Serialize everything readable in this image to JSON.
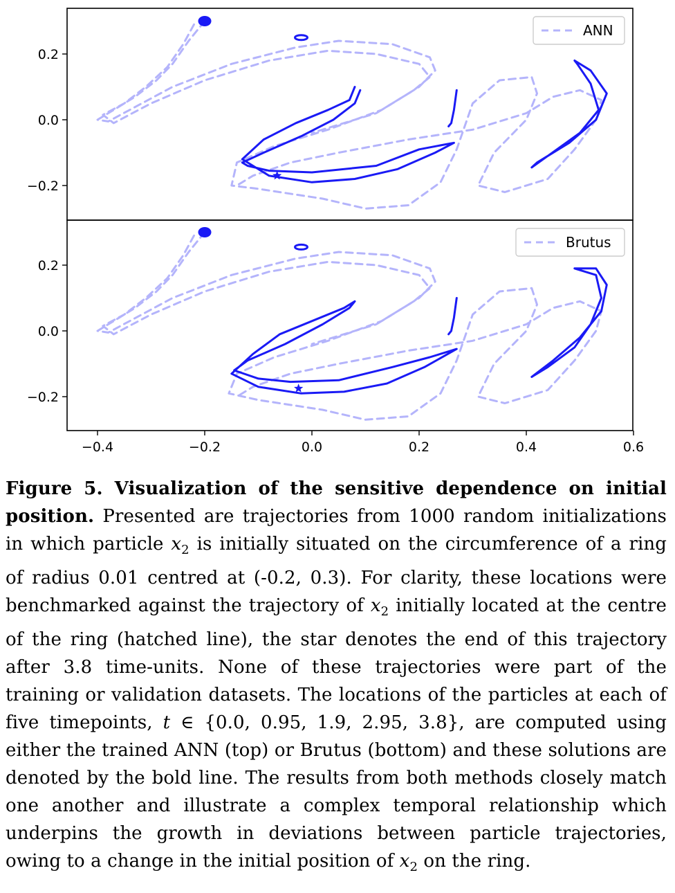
{
  "chart_data": [
    {
      "type": "line",
      "panel": "top",
      "legend": {
        "label": "ANN",
        "placement": "top-right",
        "style": "dashed",
        "color": "#b4b4fb"
      },
      "xlim": [
        -0.45,
        0.6
      ],
      "ylim": [
        -0.3,
        0.33
      ],
      "yticks": [
        -0.2,
        0.0,
        0.2
      ],
      "ytick_labels": [
        "−0.2",
        "0.0",
        "0.2"
      ],
      "series": [
        {
          "style": "dashed",
          "color": "#b4b4fb",
          "points": [
            [
              -0.2,
              0.3
            ],
            [
              -0.23,
              0.24
            ],
            [
              -0.26,
              0.17
            ],
            [
              -0.29,
              0.12
            ],
            [
              -0.33,
              0.07
            ],
            [
              -0.37,
              0.03
            ],
            [
              -0.4,
              0.0
            ],
            [
              -0.38,
              -0.005
            ],
            [
              -0.34,
              0.03
            ],
            [
              -0.26,
              0.1
            ],
            [
              -0.15,
              0.17
            ],
            [
              -0.03,
              0.22
            ],
            [
              0.05,
              0.24
            ],
            [
              0.15,
              0.23
            ],
            [
              0.22,
              0.19
            ],
            [
              0.23,
              0.15
            ],
            [
              0.2,
              0.1
            ],
            [
              0.13,
              0.03
            ],
            [
              0.03,
              -0.03
            ],
            [
              -0.07,
              -0.08
            ],
            [
              -0.14,
              -0.13
            ],
            [
              -0.15,
              -0.2
            ],
            [
              -0.1,
              -0.21
            ],
            [
              0.02,
              -0.24
            ],
            [
              0.1,
              -0.27
            ],
            [
              0.18,
              -0.26
            ],
            [
              0.24,
              -0.19
            ],
            [
              0.27,
              -0.09
            ],
            [
              0.3,
              0.05
            ],
            [
              0.35,
              0.12
            ],
            [
              0.41,
              0.13
            ],
            [
              0.42,
              0.08
            ],
            [
              0.4,
              0.0
            ],
            [
              0.34,
              -0.1
            ],
            [
              0.31,
              -0.2
            ],
            [
              0.36,
              -0.22
            ],
            [
              0.44,
              -0.18
            ],
            [
              0.49,
              -0.09
            ],
            [
              0.53,
              -0.0
            ],
            [
              0.54,
              0.06
            ],
            [
              0.5,
              0.09
            ],
            [
              0.45,
              0.07
            ],
            [
              0.4,
              0.02
            ],
            [
              0.3,
              -0.03
            ],
            [
              0.18,
              -0.06
            ],
            [
              0.05,
              -0.1
            ],
            [
              -0.04,
              -0.13
            ],
            [
              -0.11,
              -0.17
            ],
            [
              -0.14,
              -0.2
            ]
          ]
        },
        {
          "style": "dashed",
          "color": "#b4b4fb",
          "points": [
            [
              -0.22,
              0.29
            ],
            [
              -0.24,
              0.23
            ],
            [
              -0.27,
              0.16
            ],
            [
              -0.31,
              0.1
            ],
            [
              -0.35,
              0.05
            ],
            [
              -0.39,
              0.015
            ],
            [
              -0.37,
              -0.01
            ],
            [
              -0.3,
              0.05
            ],
            [
              -0.2,
              0.12
            ],
            [
              -0.08,
              0.18
            ],
            [
              0.03,
              0.21
            ],
            [
              0.12,
              0.2
            ],
            [
              0.2,
              0.17
            ],
            [
              0.22,
              0.13
            ],
            [
              0.19,
              0.09
            ],
            [
              0.12,
              0.02
            ],
            [
              0.0,
              -0.04
            ]
          ]
        },
        {
          "style": "solid",
          "color": "#1a1af5",
          "points": [
            [
              0.08,
              0.1
            ],
            [
              0.07,
              0.06
            ],
            [
              0.03,
              0.03
            ],
            [
              -0.03,
              -0.01
            ],
            [
              -0.09,
              -0.06
            ],
            [
              -0.13,
              -0.12
            ],
            [
              -0.08,
              -0.17
            ],
            [
              0.0,
              -0.19
            ],
            [
              0.08,
              -0.18
            ],
            [
              0.16,
              -0.15
            ],
            [
              0.23,
              -0.1
            ],
            [
              0.265,
              -0.07
            ],
            [
              0.2,
              -0.09
            ],
            [
              0.12,
              -0.14
            ],
            [
              0.0,
              -0.16
            ],
            [
              -0.08,
              -0.155
            ],
            [
              -0.12,
              -0.14
            ],
            [
              -0.13,
              -0.13
            ],
            [
              -0.09,
              -0.1
            ],
            [
              -0.02,
              -0.05
            ],
            [
              0.04,
              0.0
            ],
            [
              0.08,
              0.05
            ],
            [
              0.09,
              0.09
            ]
          ]
        },
        {
          "style": "solid",
          "color": "#1a1af5",
          "points": [
            [
              0.27,
              0.09
            ],
            [
              0.265,
              0.03
            ],
            [
              0.26,
              -0.01
            ],
            [
              0.255,
              -0.02
            ]
          ]
        },
        {
          "style": "solid",
          "color": "#1a1af5",
          "points": [
            [
              0.49,
              0.18
            ],
            [
              0.52,
              0.15
            ],
            [
              0.55,
              0.08
            ],
            [
              0.53,
              0.0
            ],
            [
              0.48,
              -0.07
            ],
            [
              0.42,
              -0.13
            ],
            [
              0.41,
              -0.145
            ],
            [
              0.44,
              -0.11
            ],
            [
              0.5,
              -0.04
            ],
            [
              0.535,
              0.03
            ],
            [
              0.52,
              0.11
            ],
            [
              0.495,
              0.17
            ],
            [
              0.49,
              0.18
            ]
          ]
        }
      ],
      "markers": [
        {
          "kind": "ring",
          "x": -0.2,
          "y": 0.3
        },
        {
          "kind": "ring",
          "x": -0.02,
          "y": 0.25
        },
        {
          "kind": "star",
          "x": -0.065,
          "y": -0.17
        }
      ]
    },
    {
      "type": "line",
      "panel": "bottom",
      "legend": {
        "label": "Brutus",
        "placement": "top-right",
        "style": "dashed",
        "color": "#b4b4fb"
      },
      "xlim": [
        -0.45,
        0.6
      ],
      "ylim": [
        -0.3,
        0.33
      ],
      "xticks": [
        -0.4,
        -0.2,
        0.0,
        0.2,
        0.4,
        0.6
      ],
      "xtick_labels": [
        "−0.4",
        "−0.2",
        "0.0",
        "0.2",
        "0.4",
        "0.6"
      ],
      "yticks": [
        -0.2,
        0.0,
        0.2
      ],
      "ytick_labels": [
        "−0.2",
        "0.0",
        "0.2"
      ],
      "series": [
        {
          "style": "dashed",
          "color": "#b4b4fb",
          "points": [
            [
              -0.2,
              0.3
            ],
            [
              -0.23,
              0.24
            ],
            [
              -0.26,
              0.17
            ],
            [
              -0.29,
              0.12
            ],
            [
              -0.33,
              0.07
            ],
            [
              -0.37,
              0.03
            ],
            [
              -0.4,
              0.0
            ],
            [
              -0.38,
              -0.005
            ],
            [
              -0.34,
              0.03
            ],
            [
              -0.26,
              0.1
            ],
            [
              -0.15,
              0.17
            ],
            [
              -0.03,
              0.22
            ],
            [
              0.05,
              0.24
            ],
            [
              0.15,
              0.23
            ],
            [
              0.22,
              0.19
            ],
            [
              0.23,
              0.15
            ],
            [
              0.2,
              0.1
            ],
            [
              0.13,
              0.03
            ],
            [
              0.03,
              -0.03
            ],
            [
              -0.07,
              -0.08
            ],
            [
              -0.14,
              -0.13
            ],
            [
              -0.155,
              -0.19
            ],
            [
              -0.1,
              -0.21
            ],
            [
              0.02,
              -0.24
            ],
            [
              0.1,
              -0.27
            ],
            [
              0.18,
              -0.26
            ],
            [
              0.24,
              -0.19
            ],
            [
              0.27,
              -0.09
            ],
            [
              0.3,
              0.05
            ],
            [
              0.35,
              0.12
            ],
            [
              0.41,
              0.13
            ],
            [
              0.42,
              0.08
            ],
            [
              0.4,
              0.0
            ],
            [
              0.34,
              -0.1
            ],
            [
              0.31,
              -0.2
            ],
            [
              0.36,
              -0.22
            ],
            [
              0.44,
              -0.18
            ],
            [
              0.49,
              -0.09
            ],
            [
              0.53,
              -0.0
            ],
            [
              0.54,
              0.06
            ],
            [
              0.5,
              0.09
            ],
            [
              0.45,
              0.07
            ],
            [
              0.4,
              0.02
            ],
            [
              0.3,
              -0.03
            ],
            [
              0.18,
              -0.06
            ],
            [
              0.05,
              -0.1
            ],
            [
              -0.04,
              -0.13
            ],
            [
              -0.11,
              -0.17
            ],
            [
              -0.14,
              -0.2
            ]
          ]
        },
        {
          "style": "dashed",
          "color": "#b4b4fb",
          "points": [
            [
              -0.22,
              0.29
            ],
            [
              -0.24,
              0.23
            ],
            [
              -0.27,
              0.16
            ],
            [
              -0.31,
              0.1
            ],
            [
              -0.35,
              0.05
            ],
            [
              -0.39,
              0.015
            ],
            [
              -0.37,
              -0.01
            ],
            [
              -0.3,
              0.05
            ],
            [
              -0.2,
              0.12
            ],
            [
              -0.08,
              0.18
            ],
            [
              0.03,
              0.21
            ],
            [
              0.12,
              0.2
            ],
            [
              0.2,
              0.17
            ],
            [
              0.22,
              0.13
            ],
            [
              0.19,
              0.09
            ],
            [
              0.12,
              0.02
            ],
            [
              0.0,
              -0.04
            ]
          ]
        },
        {
          "style": "solid",
          "color": "#1a1af5",
          "points": [
            [
              0.08,
              0.09
            ],
            [
              0.06,
              0.07
            ],
            [
              0.0,
              0.03
            ],
            [
              -0.06,
              -0.01
            ],
            [
              -0.11,
              -0.07
            ],
            [
              -0.15,
              -0.13
            ],
            [
              -0.1,
              -0.17
            ],
            [
              -0.02,
              -0.19
            ],
            [
              0.06,
              -0.185
            ],
            [
              0.14,
              -0.16
            ],
            [
              0.21,
              -0.11
            ],
            [
              0.27,
              -0.055
            ],
            [
              0.22,
              -0.08
            ],
            [
              0.15,
              -0.11
            ],
            [
              0.05,
              -0.15
            ],
            [
              -0.04,
              -0.155
            ],
            [
              -0.1,
              -0.145
            ],
            [
              -0.145,
              -0.12
            ],
            [
              -0.12,
              -0.09
            ],
            [
              -0.05,
              -0.04
            ],
            [
              0.02,
              0.02
            ],
            [
              0.07,
              0.07
            ],
            [
              0.08,
              0.09
            ]
          ]
        },
        {
          "style": "solid",
          "color": "#1a1af5",
          "points": [
            [
              0.27,
              0.1
            ],
            [
              0.265,
              0.04
            ],
            [
              0.26,
              0.0
            ],
            [
              0.255,
              -0.01
            ]
          ]
        },
        {
          "style": "solid",
          "color": "#1a1af5",
          "points": [
            [
              0.49,
              0.19
            ],
            [
              0.53,
              0.19
            ],
            [
              0.55,
              0.14
            ],
            [
              0.54,
              0.06
            ],
            [
              0.5,
              -0.02
            ],
            [
              0.45,
              -0.09
            ],
            [
              0.41,
              -0.14
            ],
            [
              0.44,
              -0.11
            ],
            [
              0.49,
              -0.05
            ],
            [
              0.52,
              0.02
            ],
            [
              0.54,
              0.1
            ],
            [
              0.53,
              0.17
            ],
            [
              0.49,
              0.19
            ]
          ]
        }
      ],
      "markers": [
        {
          "kind": "ring",
          "x": -0.2,
          "y": 0.3
        },
        {
          "kind": "ring",
          "x": -0.02,
          "y": 0.255
        },
        {
          "kind": "star",
          "x": -0.025,
          "y": -0.175
        }
      ]
    }
  ],
  "caption": {
    "title": "Figure 5. Visualization of the sensitive dependence on initial position.",
    "parts": [
      {
        "text": " Presented are trajectories from 1000 random initializations in which particle "
      },
      {
        "math": "x",
        "sub": "2"
      },
      {
        "text": " is initially situated on the circumference of a ring of radius 0.01 centred at (-0.2, 0.3). For clarity, these locations were benchmarked against the trajectory of "
      },
      {
        "math": "x",
        "sub": "2"
      },
      {
        "text": " initially located at the centre of the ring (hatched line), the star denotes the end of this trajectory after 3.8 time-units. None of these trajectories were part of the training or validation datasets. The locations of the particles at each of five timepoints, "
      },
      {
        "math": "t",
        "sub": ""
      },
      {
        "text": " ∈ {0.0, 0.95, 1.9, 2.95, 3.8}, are computed using either the trained ANN (top) or Brutus (bottom) and these solutions are denoted by the bold line. The results from both methods closely match one another and illustrate a complex temporal relationship which underpins the growth in deviations between particle trajectories, owing to a change in the initial position of "
      },
      {
        "math": "x",
        "sub": "2"
      },
      {
        "text": " on the ring."
      }
    ]
  }
}
